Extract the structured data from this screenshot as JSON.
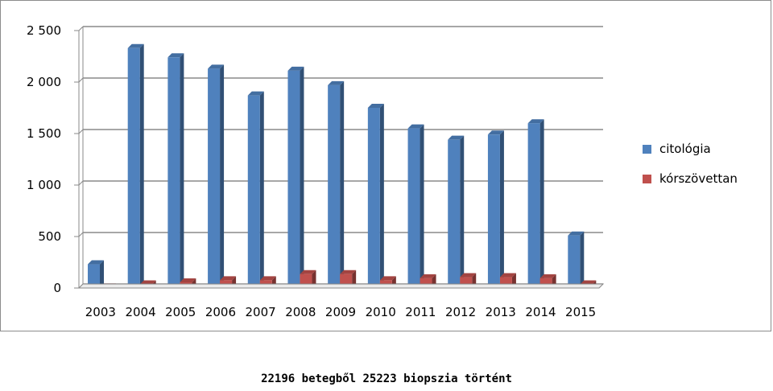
{
  "chart_data": {
    "type": "bar",
    "categories": [
      "2003",
      "2004",
      "2005",
      "2006",
      "2007",
      "2008",
      "2009",
      "2010",
      "2011",
      "2012",
      "2013",
      "2014",
      "2015"
    ],
    "series": [
      {
        "name": "citológia",
        "color": "#4f81bd",
        "values": [
          230,
          2330,
          2240,
          2130,
          1870,
          2110,
          1970,
          1750,
          1550,
          1440,
          1490,
          1600,
          510
        ]
      },
      {
        "name": "kórszövettan",
        "color": "#c0504d",
        "values": [
          5,
          35,
          55,
          75,
          75,
          135,
          135,
          75,
          95,
          105,
          105,
          95,
          35
        ]
      }
    ],
    "y_ticks": [
      "0",
      "500",
      "1 000",
      "1 500",
      "2 000",
      "2 500"
    ],
    "ylim": [
      0,
      2500
    ],
    "grid": true,
    "legend_position": "right"
  },
  "caption": "22196 betegből 25223 biopszia történt"
}
